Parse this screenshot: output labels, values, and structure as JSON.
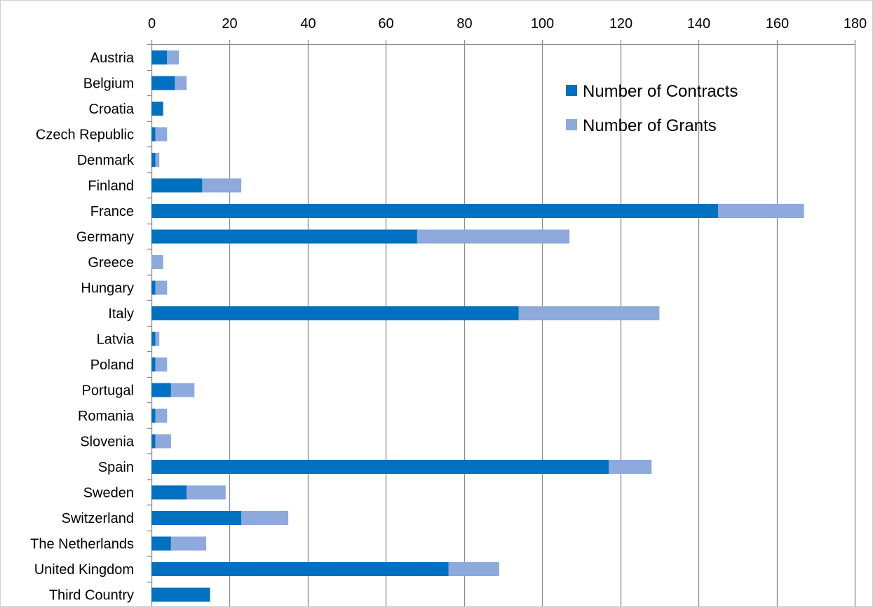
{
  "chart_data": {
    "type": "bar",
    "orientation": "horizontal",
    "stacked": true,
    "categories": [
      "Austria",
      "Belgium",
      "Croatia",
      "Czech Republic",
      "Denmark",
      "Finland",
      "France",
      "Germany",
      "Greece",
      "Hungary",
      "Italy",
      "Latvia",
      "Poland",
      "Portugal",
      "Romania",
      "Slovenia",
      "Spain",
      "Sweden",
      "Switzerland",
      "The Netherlands",
      "United Kingdom",
      "Third Country"
    ],
    "series": [
      {
        "name": "Number of Contracts",
        "color": "#0070C0",
        "values": [
          4,
          6,
          3,
          1,
          1,
          13,
          145,
          68,
          0,
          1,
          94,
          1,
          1,
          5,
          1,
          1,
          117,
          9,
          23,
          5,
          76,
          15
        ]
      },
      {
        "name": "Number of Grants",
        "color": "#8EA9DB",
        "values": [
          3,
          3,
          0,
          3,
          1,
          10,
          22,
          39,
          3,
          3,
          36,
          1,
          3,
          6,
          3,
          4,
          11,
          10,
          12,
          9,
          13,
          0
        ]
      }
    ],
    "xlim": [
      0,
      180
    ],
    "xticks": [
      "0",
      "20",
      "40",
      "60",
      "80",
      "100",
      "120",
      "140",
      "160",
      "180"
    ],
    "xaxis_position": "top",
    "grid": "vertical",
    "legend_position": "top-right"
  }
}
